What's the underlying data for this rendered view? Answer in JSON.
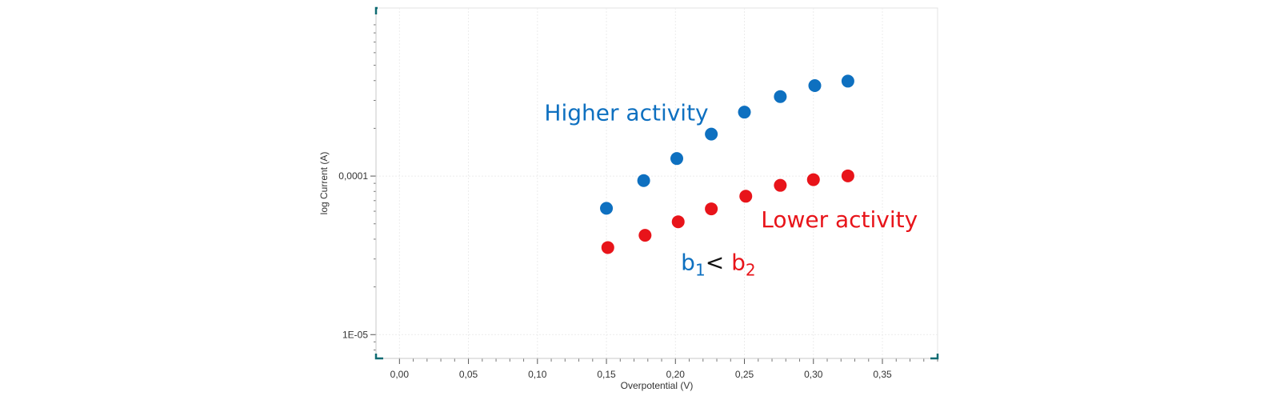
{
  "chart_data": {
    "type": "scatter",
    "title": "",
    "xlabel": "Overpotential (V)",
    "ylabel": "log Current (A)",
    "xlim": [
      -0.017,
      0.39
    ],
    "ylim_log10": [
      -5.15,
      -2.94
    ],
    "y_scale": "log",
    "grid": true,
    "x_ticks": [
      {
        "value": 0.0,
        "label": "0,00"
      },
      {
        "value": 0.05,
        "label": "0,05"
      },
      {
        "value": 0.1,
        "label": "0,10"
      },
      {
        "value": 0.15,
        "label": "0,15"
      },
      {
        "value": 0.2,
        "label": "0,20"
      },
      {
        "value": 0.25,
        "label": "0,25"
      },
      {
        "value": 0.3,
        "label": "0,30"
      },
      {
        "value": 0.35,
        "label": "0,35"
      }
    ],
    "y_ticks": [
      {
        "value": 0.0001,
        "label": "0,0001"
      },
      {
        "value": 1e-05,
        "label": "1E-05"
      }
    ],
    "series": [
      {
        "name": "Higher activity",
        "color": "#0E70C0",
        "x": [
          0.15,
          0.177,
          0.201,
          0.226,
          0.25,
          0.276,
          0.301,
          0.325
        ],
        "y": [
          6.26e-05,
          9.36e-05,
          0.000129,
          0.000184,
          0.000253,
          0.000317,
          0.000372,
          0.000397
        ]
      },
      {
        "name": "Lower activity",
        "color": "#E8141A",
        "x": [
          0.151,
          0.178,
          0.202,
          0.226,
          0.251,
          0.276,
          0.3,
          0.325
        ],
        "y": [
          3.54e-05,
          4.23e-05,
          5.15e-05,
          6.21e-05,
          7.46e-05,
          8.74e-05,
          9.49e-05,
          0.0001003
        ]
      }
    ],
    "annotations": [
      {
        "id": "higher",
        "text": "Higher activity",
        "color": "#0E70C0",
        "x": 0.105,
        "y": 0.000225
      },
      {
        "id": "lower",
        "text": "Lower activity",
        "color": "#E8141A",
        "x": 0.262,
        "y": 4.75e-05
      }
    ],
    "formula": {
      "b1_base": "b",
      "b1_sub": "1",
      "b1_color": "#0E70C0",
      "operator": "<",
      "operator_color": "#111111",
      "b2_base": "b",
      "b2_sub": "2",
      "b2_color": "#E8141A",
      "x": 0.204,
      "y": 2.55e-05
    }
  }
}
